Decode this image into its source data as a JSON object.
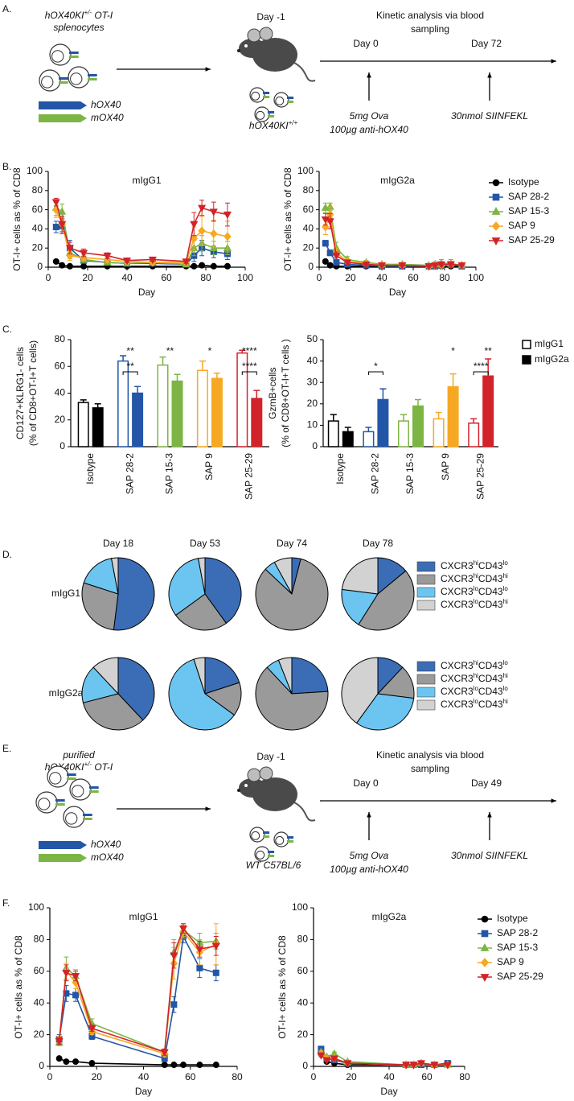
{
  "schematics": [
    {
      "panel": "A.",
      "cells_label": [
        [
          "hOX40KI",
          "+/-",
          " OT-I"
        ],
        [
          "splenocytes"
        ]
      ],
      "receptors": [
        "hOX40",
        "mOX40"
      ],
      "receptor_colors": [
        "#2356a6",
        "#7db544"
      ],
      "transfer_day": "Day -1",
      "host": [
        "hOX40KI",
        "+/+"
      ],
      "timeline_title": [
        "Kinetic analysis via blood",
        "sampling"
      ],
      "days": [
        "Day 0",
        "Day 72"
      ],
      "treatments": [
        [
          "5mg Ova",
          "100µg anti-hOX40"
        ],
        [
          "30nmol SIINFEKL"
        ]
      ]
    },
    {
      "panel": "E.",
      "cells_label": [
        [
          "purified"
        ],
        [
          "hOX40KI",
          "+/-",
          " OT-I"
        ]
      ],
      "receptors": [
        "hOX40",
        "mOX40"
      ],
      "receptor_colors": [
        "#2356a6",
        "#7db544"
      ],
      "transfer_day": "Day -1",
      "host": "WT C57BL/6",
      "timeline_title": [
        "Kinetic analysis via blood",
        "sampling"
      ],
      "days": [
        "Day 0",
        "Day 49"
      ],
      "treatments": [
        [
          "5mg Ova",
          "100µg anti-hOX40"
        ],
        [
          "30nmol SIINFEKL"
        ]
      ]
    }
  ],
  "chart_data": [
    {
      "type": "line",
      "panel": "B.",
      "title": "mIgG1",
      "x_label": "Day",
      "y_label": "OT-I+ cells as % of CD8",
      "x": [
        4,
        7,
        11,
        18,
        30,
        40,
        53,
        70,
        74,
        78,
        84,
        91
      ],
      "xlim": [
        0,
        100
      ],
      "xticks": [
        0,
        20,
        40,
        60,
        80,
        100
      ],
      "ylim": [
        0,
        100
      ],
      "yticks": [
        0,
        20,
        40,
        60,
        80,
        100
      ],
      "series": [
        {
          "color": "#000000",
          "marker": "circle",
          "values": [
            6,
            2,
            1,
            1,
            1,
            1,
            1,
            1,
            1,
            2,
            1,
            1
          ],
          "errors": [
            1,
            0.5,
            0.5,
            0.5,
            0.5,
            0.5,
            0.5,
            0.5,
            0.5,
            0.5,
            0.5,
            0.5
          ]
        },
        {
          "color": "#2356a6",
          "marker": "square",
          "values": [
            42,
            43,
            20,
            7,
            5,
            4,
            4,
            3,
            12,
            20,
            16,
            14
          ],
          "errors": [
            6,
            8,
            8,
            3,
            2,
            2,
            2,
            1,
            6,
            8,
            6,
            6
          ]
        },
        {
          "color": "#7db544",
          "marker": "triangle-up",
          "values": [
            62,
            58,
            15,
            8,
            5,
            4,
            5,
            3,
            20,
            25,
            20,
            20
          ],
          "errors": [
            8,
            8,
            6,
            3,
            2,
            2,
            2,
            1,
            8,
            8,
            7,
            7
          ]
        },
        {
          "color": "#f7a823",
          "marker": "diamond",
          "values": [
            60,
            45,
            12,
            10,
            8,
            6,
            5,
            5,
            30,
            38,
            35,
            32
          ],
          "errors": [
            8,
            8,
            5,
            3,
            3,
            2,
            2,
            2,
            12,
            15,
            14,
            16
          ]
        },
        {
          "color": "#d2232a",
          "marker": "triangle-down",
          "values": [
            68,
            45,
            20,
            15,
            12,
            7,
            8,
            6,
            45,
            62,
            58,
            55
          ],
          "errors": [
            4,
            8,
            6,
            4,
            3,
            2,
            2,
            2,
            12,
            8,
            10,
            12
          ]
        }
      ]
    },
    {
      "type": "line",
      "title": "mIgG2a",
      "x_label": "Day",
      "y_label": "OT-I+ cells as % of CD8",
      "legend": "right",
      "x": [
        4,
        7,
        11,
        18,
        30,
        40,
        53,
        70,
        74,
        78,
        84,
        91
      ],
      "xlim": [
        0,
        100
      ],
      "xticks": [
        0,
        20,
        40,
        60,
        80,
        100
      ],
      "ylim": [
        0,
        100
      ],
      "yticks": [
        0,
        20,
        40,
        60,
        80,
        100
      ],
      "series": [
        {
          "name": "Isotype",
          "color": "#000000",
          "marker": "circle",
          "values": [
            6,
            2,
            1,
            1,
            1,
            1,
            1,
            1,
            1,
            1,
            1,
            1
          ],
          "errors": [
            1,
            0.5,
            0.5,
            0.5,
            0.5,
            0.5,
            0.5,
            0.5,
            0.5,
            0.5,
            0.5,
            0.5
          ]
        },
        {
          "name": "SAP 28-2",
          "color": "#2356a6",
          "marker": "square",
          "values": [
            25,
            15,
            5,
            3,
            2,
            1,
            1,
            1,
            1,
            2,
            3,
            1
          ],
          "errors": [
            3,
            3,
            2,
            1,
            1,
            0.5,
            0.5,
            0.5,
            1,
            1,
            2,
            1
          ]
        },
        {
          "name": "SAP 15-3",
          "color": "#7db544",
          "marker": "triangle-up",
          "values": [
            62,
            63,
            20,
            8,
            5,
            3,
            3,
            2,
            3,
            4,
            4,
            2
          ],
          "errors": [
            5,
            4,
            6,
            3,
            2,
            1,
            2,
            1,
            3,
            4,
            4,
            2
          ]
        },
        {
          "name": "SAP 9",
          "color": "#f7a823",
          "marker": "diamond",
          "values": [
            42,
            55,
            15,
            6,
            4,
            2,
            2,
            1,
            2,
            2,
            3,
            2
          ],
          "errors": [
            8,
            8,
            5,
            2,
            2,
            1,
            1,
            1,
            2,
            2,
            2,
            1
          ]
        },
        {
          "name": "SAP 25-29",
          "color": "#d2232a",
          "marker": "triangle-down",
          "values": [
            50,
            48,
            12,
            5,
            3,
            2,
            2,
            1,
            2,
            3,
            3,
            2
          ],
          "errors": [
            6,
            8,
            4,
            2,
            1,
            1,
            1,
            1,
            2,
            2,
            2,
            1
          ]
        }
      ]
    },
    {
      "type": "bar",
      "panel": "C.",
      "y_label": [
        "CD127+KLRG1- cells",
        "(% of CD8+OT-I+T cells)"
      ],
      "categories": [
        "Isotype",
        "SAP 28-2",
        "SAP 15-3",
        "SAP 9",
        "SAP 25-29"
      ],
      "category_colors": [
        "#000000",
        "#2356a6",
        "#7db544",
        "#f7a823",
        "#d2232a"
      ],
      "ylim": [
        0,
        80
      ],
      "yticks": [
        0,
        20,
        40,
        60,
        80
      ],
      "series": [
        {
          "filled": false,
          "values": [
            33,
            64,
            61,
            57,
            70
          ],
          "errors": [
            2,
            4,
            6,
            7,
            2
          ]
        },
        {
          "filled": true,
          "values": [
            29,
            40,
            49,
            51,
            36
          ],
          "errors": [
            3,
            5,
            5,
            4,
            6
          ]
        }
      ],
      "annotations": [
        {
          "text": "**",
          "category": 1
        },
        {
          "text": "**",
          "category": 1,
          "bracket": true
        },
        {
          "text": "**",
          "category": 2
        },
        {
          "text": "*",
          "category": 3
        },
        {
          "text": "****",
          "category": 4
        },
        {
          "text": "****",
          "category": 4,
          "bracket": true
        }
      ]
    },
    {
      "type": "bar",
      "y_label": [
        "GzmB+cells",
        "(% of CD8+OT-I+T cells )"
      ],
      "legend": "right",
      "categories": [
        "Isotype",
        "SAP 28-2",
        "SAP 15-3",
        "SAP 9",
        "SAP 25-29"
      ],
      "category_colors": [
        "#000000",
        "#2356a6",
        "#7db544",
        "#f7a823",
        "#d2232a"
      ],
      "ylim": [
        0,
        50
      ],
      "yticks": [
        0,
        10,
        20,
        30,
        40,
        50
      ],
      "series": [
        {
          "name": "mIgG1",
          "color": "#000000",
          "filled": false,
          "values": [
            12,
            7,
            12,
            13,
            11
          ],
          "errors": [
            3,
            2,
            3,
            3,
            2
          ]
        },
        {
          "name": "mIgG2a",
          "color": "#000000",
          "filled": true,
          "values": [
            7,
            22,
            19,
            28,
            33
          ],
          "errors": [
            2,
            5,
            3,
            6,
            8
          ]
        }
      ],
      "annotations": [
        {
          "text": "*",
          "category": 1,
          "bracket": true
        },
        {
          "text": "*",
          "category": 3,
          "series": 1
        },
        {
          "text": "****",
          "category": 4,
          "bracket": true
        },
        {
          "text": "**",
          "category": 4,
          "series": 1
        }
      ]
    },
    {
      "type": "pie",
      "panel": "D.",
      "row_label": "mIgG1",
      "categories": [
        [
          "CXCR3",
          "hi",
          "CD43",
          "lo"
        ],
        [
          "CXCR3",
          "hi",
          "CD43",
          "hi"
        ],
        [
          "CXCR3",
          "lo",
          "CD43",
          "lo"
        ],
        [
          "CXCR3",
          "lo",
          "CD43",
          "hi"
        ]
      ],
      "colors": [
        "#3a6db5",
        "#9a9a9a",
        "#6cc5f0",
        "#d2d2d2"
      ],
      "pies": [
        {
          "title": "Day 18",
          "values": [
            52,
            28,
            17,
            3
          ]
        },
        {
          "title": "Day 53",
          "values": [
            40,
            25,
            32,
            3
          ]
        },
        {
          "title": "Day 74",
          "values": [
            4,
            83,
            5,
            8
          ]
        },
        {
          "title": "Day 78",
          "values": [
            14,
            45,
            18,
            23
          ]
        }
      ]
    },
    {
      "type": "pie",
      "row_label": "mIgG2a",
      "categories": [
        [
          "CXCR3",
          "hi",
          "CD43",
          "lo"
        ],
        [
          "CXCR3",
          "hi",
          "CD43",
          "hi"
        ],
        [
          "CXCR3",
          "lo",
          "CD43",
          "lo"
        ],
        [
          "CXCR3",
          "lo",
          "CD43",
          "hi"
        ]
      ],
      "colors": [
        "#3a6db5",
        "#9a9a9a",
        "#6cc5f0",
        "#d2d2d2"
      ],
      "pies": [
        {
          "values": [
            38,
            33,
            17,
            12
          ]
        },
        {
          "values": [
            20,
            15,
            60,
            5
          ]
        },
        {
          "values": [
            24,
            64,
            6,
            6
          ]
        },
        {
          "values": [
            12,
            15,
            33,
            40
          ]
        }
      ]
    },
    {
      "type": "line",
      "panel": "F.",
      "title": "mIgG1",
      "x_label": "Day",
      "y_label": "OT-I+ cells as % of CD8",
      "x": [
        4,
        7,
        11,
        18,
        49,
        53,
        57,
        64,
        71
      ],
      "xlim": [
        0,
        80
      ],
      "xticks": [
        0,
        20,
        40,
        60,
        80
      ],
      "ylim": [
        0,
        100
      ],
      "yticks": [
        0,
        20,
        40,
        60,
        80,
        100
      ],
      "series": [
        {
          "color": "#000000",
          "marker": "circle",
          "values": [
            5,
            3,
            3,
            2,
            1,
            1,
            1,
            1,
            1
          ],
          "errors": [
            0.5,
            1,
            1,
            0.5,
            0.5,
            0.5,
            0.5,
            0.5,
            0.5
          ]
        },
        {
          "color": "#2356a6",
          "marker": "square",
          "values": [
            17,
            46,
            45,
            19,
            5,
            39,
            82,
            62,
            59
          ],
          "errors": [
            3,
            5,
            4,
            2,
            2,
            5,
            4,
            6,
            5
          ]
        },
        {
          "color": "#7db544",
          "marker": "triangle-up",
          "values": [
            15,
            62,
            57,
            27,
            9,
            72,
            86,
            78,
            79
          ],
          "errors": [
            2,
            7,
            4,
            3,
            2,
            8,
            4,
            6,
            5
          ]
        },
        {
          "color": "#f7a823",
          "marker": "diamond",
          "values": [
            17,
            60,
            53,
            22,
            8,
            65,
            85,
            72,
            77
          ],
          "errors": [
            2,
            5,
            4,
            2,
            2,
            10,
            4,
            8,
            13
          ]
        },
        {
          "color": "#d2232a",
          "marker": "triangle-down",
          "values": [
            16,
            59,
            57,
            24,
            9,
            70,
            87,
            74,
            76
          ],
          "errors": [
            2,
            5,
            3,
            2,
            2,
            8,
            3,
            5,
            6
          ]
        }
      ]
    },
    {
      "type": "line",
      "title": "mIgG2a",
      "x_label": "Day",
      "y_label": "OT-I+ cells as % of CD8",
      "legend": "right",
      "x": [
        4,
        7,
        11,
        18,
        49,
        53,
        57,
        64,
        71
      ],
      "xlim": [
        0,
        80
      ],
      "xticks": [
        0,
        20,
        40,
        60,
        80
      ],
      "ylim": [
        0,
        100
      ],
      "yticks": [
        0,
        20,
        40,
        60,
        80,
        100
      ],
      "series": [
        {
          "name": "Isotype",
          "color": "#000000",
          "marker": "circle",
          "values": [
            8,
            3,
            2,
            1,
            1,
            1,
            2,
            1,
            1
          ],
          "errors": [
            1,
            1,
            1,
            0.5,
            0.5,
            0.5,
            0.5,
            0.5,
            0.5
          ]
        },
        {
          "name": "SAP 28-2",
          "color": "#2356a6",
          "marker": "square",
          "values": [
            11,
            5,
            4,
            2,
            1,
            1,
            1,
            1,
            2
          ],
          "errors": [
            1,
            1,
            1,
            1,
            0.5,
            0.5,
            0.5,
            0.5,
            0.5
          ]
        },
        {
          "name": "SAP 15-3",
          "color": "#7db544",
          "marker": "triangle-up",
          "values": [
            9,
            6,
            8,
            3,
            1,
            1,
            2,
            1,
            1
          ],
          "errors": [
            1,
            1,
            1,
            1,
            0.5,
            0.5,
            0.5,
            0.5,
            0.5
          ]
        },
        {
          "name": "SAP 9",
          "color": "#f7a823",
          "marker": "diamond",
          "values": [
            8,
            5,
            5,
            2,
            1,
            1,
            2,
            1,
            1
          ],
          "errors": [
            1,
            1,
            1,
            1,
            0.5,
            0.5,
            0.5,
            0.5,
            0.5
          ]
        },
        {
          "name": "SAP 25-29",
          "color": "#d2232a",
          "marker": "triangle-down",
          "values": [
            7,
            4,
            5,
            2,
            1,
            1,
            2,
            1,
            1
          ],
          "errors": [
            1,
            1,
            1,
            1,
            0.5,
            0.5,
            0.5,
            0.5,
            0.5
          ]
        }
      ]
    }
  ]
}
